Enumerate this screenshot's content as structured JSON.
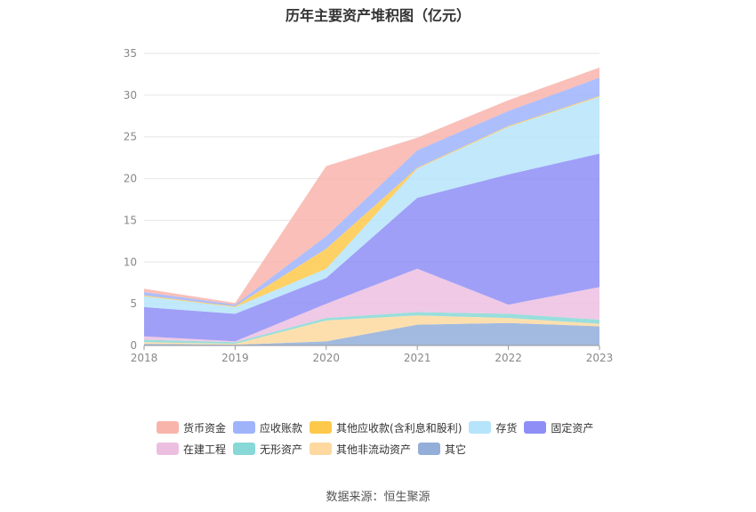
{
  "title": "历年主要资产堆积图（亿元）",
  "source_label": "数据来源：恒生聚源",
  "chart_data": {
    "type": "area",
    "stacked": true,
    "title": "历年主要资产堆积图（亿元）",
    "xlabel": "",
    "ylabel": "",
    "x": [
      "2018",
      "2019",
      "2020",
      "2021",
      "2022",
      "2023"
    ],
    "ylim": [
      0,
      35
    ],
    "yticks": [
      0,
      5,
      10,
      15,
      20,
      25,
      30,
      35
    ],
    "grid": true,
    "legend_position": "bottom",
    "series": [
      {
        "name": "其它",
        "color": "#92aed9",
        "values": [
          0.2,
          0.1,
          0.5,
          2.5,
          2.7,
          2.3
        ]
      },
      {
        "name": "其他非流动资产",
        "color": "#fdd9a0",
        "values": [
          0.2,
          0.1,
          2.5,
          1.1,
          0.6,
          0.3
        ]
      },
      {
        "name": "无形资产",
        "color": "#87d8d6",
        "values": [
          0.3,
          0.2,
          0.3,
          0.4,
          0.5,
          0.5
        ]
      },
      {
        "name": "在建工程",
        "color": "#ecbfe0",
        "values": [
          0.4,
          0.1,
          1.7,
          5.2,
          1.1,
          3.9
        ]
      },
      {
        "name": "固定资产",
        "color": "#8e8ef6",
        "values": [
          3.5,
          3.3,
          3.1,
          8.5,
          15.6,
          16.0
        ]
      },
      {
        "name": "存货",
        "color": "#b6e4fa",
        "values": [
          1.3,
          0.8,
          1.1,
          3.5,
          5.7,
          6.8
        ]
      },
      {
        "name": "其他应收款(含利息和股利)",
        "color": "#fec94b",
        "values": [
          0.1,
          0.1,
          2.4,
          0.1,
          0.1,
          0.1
        ]
      },
      {
        "name": "应收账款",
        "color": "#9fb3fb",
        "values": [
          0.4,
          0.2,
          1.5,
          2.1,
          1.8,
          2.2
        ]
      },
      {
        "name": "货币资金",
        "color": "#f8b4ab",
        "values": [
          0.4,
          0.2,
          8.4,
          1.5,
          1.3,
          1.2
        ]
      }
    ],
    "legend_order": [
      "货币资金",
      "应收账款",
      "其他应收款(含利息和股利)",
      "存货",
      "固定资产",
      "在建工程",
      "无形资产",
      "其他非流动资产",
      "其它"
    ]
  }
}
